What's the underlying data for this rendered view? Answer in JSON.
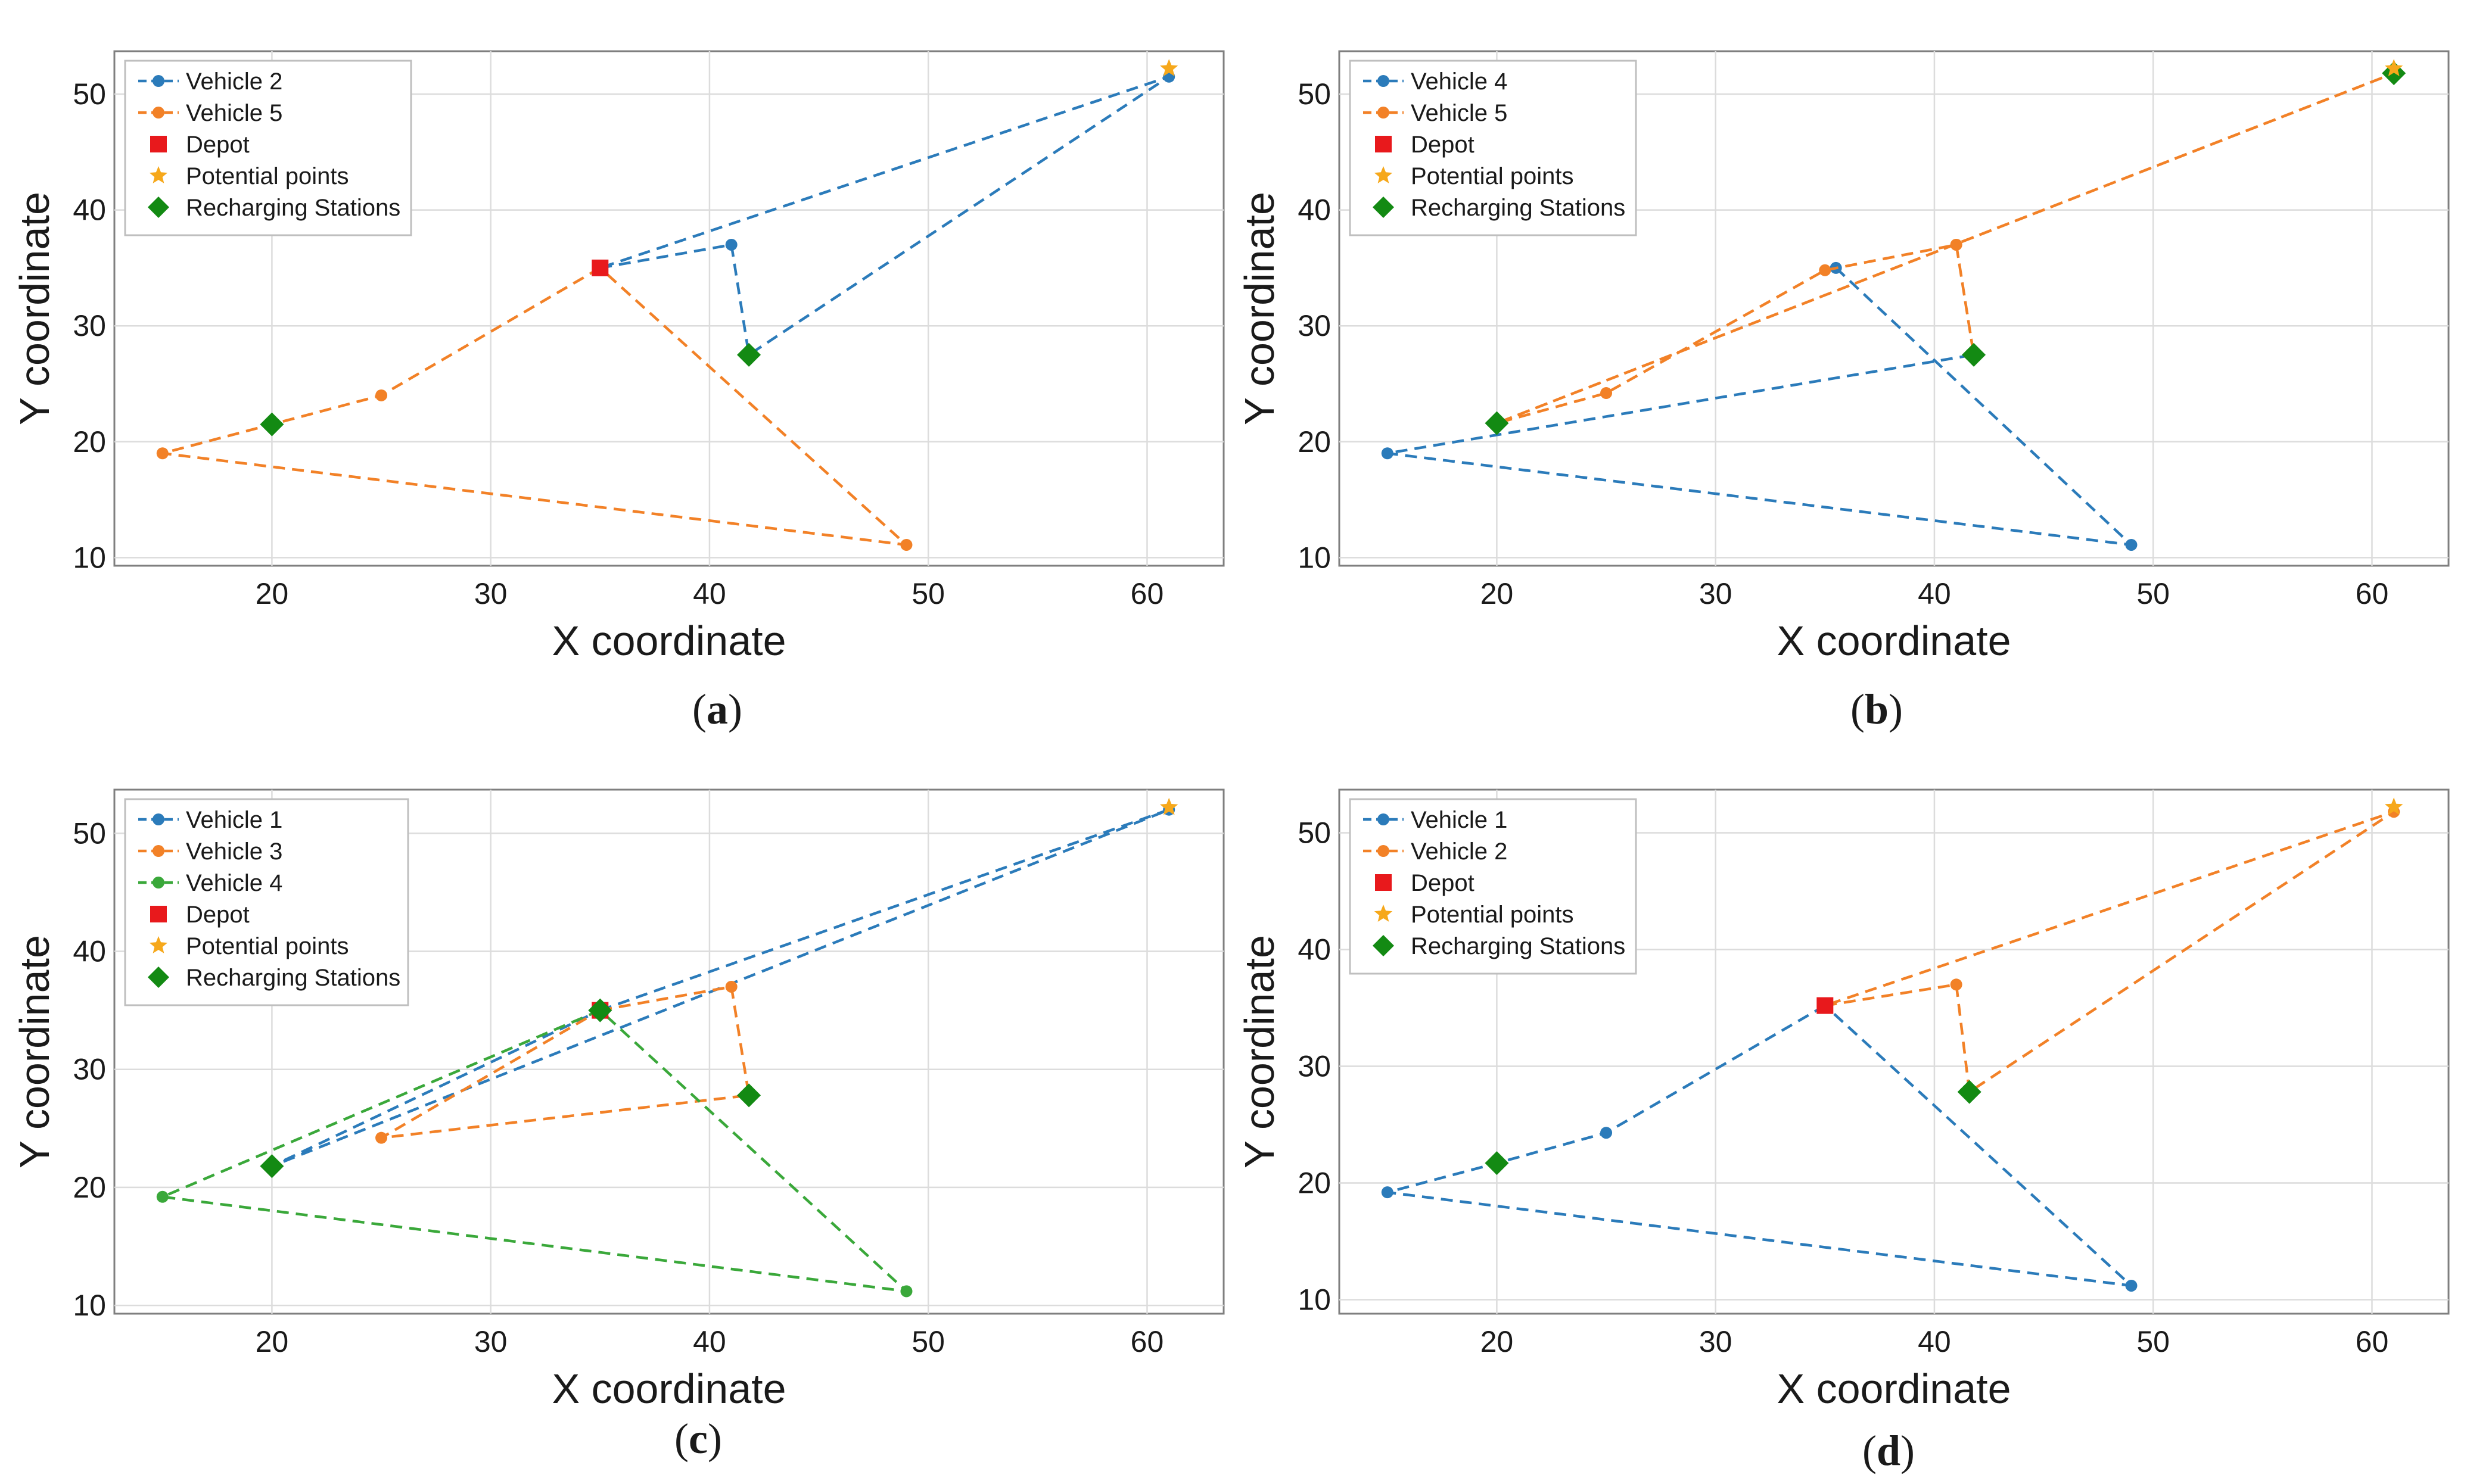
{
  "colors": {
    "depot": "#e8191c",
    "potential": "#f6a81b",
    "recharge": "#138a13",
    "Vehicle 1": "#2b7bba",
    "Vehicle 2": "#2b7bba",
    "Vehicle 3": "#f28127",
    "Vehicle 4": "#3aa83a",
    "Vehicle 5": "#f28127"
  },
  "chart_data": [
    {
      "type": "line",
      "caption_letter": "a",
      "xlabel": "X coordinate",
      "ylabel": "Y coordinate",
      "xlim": [
        12.8,
        63.5
      ],
      "ylim": [
        9.3,
        53.7
      ],
      "xticks": [
        20,
        30,
        40,
        50,
        60
      ],
      "yticks": [
        10,
        20,
        30,
        40,
        50
      ],
      "grid": true,
      "legend_position": "top-left",
      "depot": [
        35,
        35
      ],
      "potential_points": [
        [
          61,
          52
        ]
      ],
      "recharging_stations": [
        [
          20,
          21.5
        ],
        [
          41.8,
          27.5
        ]
      ],
      "series": [
        {
          "name": "Vehicle 2",
          "color_key": "Vehicle 2",
          "points": [
            [
              35,
              35
            ],
            [
              41,
              37
            ],
            [
              41.8,
              27.5
            ],
            [
              61,
              51.5
            ],
            [
              35,
              35
            ]
          ]
        },
        {
          "name": "Vehicle 5",
          "color_key": "Vehicle 5",
          "points": [
            [
              35,
              35
            ],
            [
              25,
              24
            ],
            [
              20,
              21.5
            ],
            [
              15,
              19
            ],
            [
              49,
              11.1
            ],
            [
              35,
              35
            ]
          ]
        }
      ],
      "legend": [
        "Vehicle 2",
        "Vehicle 5",
        "Depot",
        "Potential points",
        "Recharging Stations"
      ]
    },
    {
      "type": "line",
      "caption_letter": "b",
      "xlabel": "X coordinate",
      "ylabel": "Y coordinate",
      "xlim": [
        12.8,
        63.5
      ],
      "ylim": [
        9.3,
        53.7
      ],
      "xticks": [
        20,
        30,
        40,
        50,
        60
      ],
      "yticks": [
        10,
        20,
        30,
        40,
        50
      ],
      "grid": true,
      "legend_position": "top-left",
      "depot": null,
      "potential_points": [
        [
          61,
          52
        ]
      ],
      "recharging_stations": [
        [
          20,
          21.6
        ],
        [
          41.8,
          27.5
        ],
        [
          61,
          51.8
        ]
      ],
      "series": [
        {
          "name": "Vehicle 4",
          "color_key": "Vehicle 1",
          "points": [
            [
              35.5,
              35
            ],
            [
              49,
              11.1
            ],
            [
              15,
              19
            ],
            [
              41.8,
              27.5
            ]
          ]
        },
        {
          "name": "Vehicle 5",
          "color_key": "Vehicle 5",
          "points": [
            [
              41,
              37
            ],
            [
              41.8,
              27.5
            ],
            [
              41,
              37
            ],
            [
              35,
              34.8
            ],
            [
              25,
              24.2
            ],
            [
              20,
              21.6
            ],
            [
              61,
              51.8
            ],
            [
              20,
              21.6
            ]
          ]
        }
      ],
      "legend": [
        "Vehicle 4",
        "Vehicle 5",
        "Depot",
        "Potential points",
        "Recharging Stations"
      ]
    },
    {
      "type": "line",
      "caption_letter": "c",
      "xlabel": "X coordinate",
      "ylabel": "Y coordinate",
      "xlim": [
        12.8,
        63.5
      ],
      "ylim": [
        9.3,
        53.7
      ],
      "xticks": [
        20,
        30,
        40,
        50,
        60
      ],
      "yticks": [
        10,
        20,
        30,
        40,
        50
      ],
      "grid": true,
      "legend_position": "top-left",
      "depot": [
        35,
        35
      ],
      "potential_points": [
        [
          61,
          52
        ]
      ],
      "recharging_stations": [
        [
          20,
          21.8
        ],
        [
          35,
          35
        ],
        [
          41.8,
          27.8
        ]
      ],
      "series": [
        {
          "name": "Vehicle 1",
          "color_key": "Vehicle 1",
          "points": [
            [
              35,
              35
            ],
            [
              61,
              52
            ],
            [
              20,
              21.8
            ],
            [
              35,
              35
            ]
          ]
        },
        {
          "name": "Vehicle 3",
          "color_key": "Vehicle 3",
          "points": [
            [
              35,
              35
            ],
            [
              41,
              37
            ],
            [
              41.8,
              27.8
            ],
            [
              25,
              24.2
            ],
            [
              35,
              35
            ]
          ]
        },
        {
          "name": "Vehicle 4",
          "color_key": "Vehicle 4",
          "points": [
            [
              35,
              35
            ],
            [
              15,
              19.2
            ],
            [
              49,
              11.2
            ],
            [
              35,
              35
            ]
          ]
        }
      ],
      "legend": [
        "Vehicle 1",
        "Vehicle 3",
        "Vehicle 4",
        "Depot",
        "Potential points",
        "Recharging Stations"
      ]
    },
    {
      "type": "line",
      "caption_letter": "d",
      "xlabel": "X coordinate",
      "ylabel": "Y coordinate",
      "xlim": [
        12.8,
        63.5
      ],
      "ylim": [
        8.8,
        53.7
      ],
      "xticks": [
        20,
        30,
        40,
        50,
        60
      ],
      "yticks": [
        10,
        20,
        30,
        40,
        50
      ],
      "grid": true,
      "legend_position": "top-left",
      "depot": [
        35,
        35.2
      ],
      "potential_points": [
        [
          61,
          52
        ]
      ],
      "recharging_stations": [
        [
          20,
          21.7
        ],
        [
          41.6,
          27.8
        ]
      ],
      "series": [
        {
          "name": "Vehicle 1",
          "color_key": "Vehicle 1",
          "points": [
            [
              35,
              35.2
            ],
            [
              25,
              24.3
            ],
            [
              20,
              21.7
            ],
            [
              15,
              19.2
            ],
            [
              49,
              11.2
            ],
            [
              35,
              35.2
            ]
          ]
        },
        {
          "name": "Vehicle 2",
          "color_key": "Vehicle 3",
          "points": [
            [
              35,
              35.2
            ],
            [
              41,
              37
            ],
            [
              41.6,
              27.8
            ],
            [
              61,
              51.8
            ],
            [
              35,
              35.2
            ]
          ]
        }
      ],
      "legend": [
        "Vehicle 1",
        "Vehicle 2",
        "Depot",
        "Potential points",
        "Recharging Stations"
      ]
    }
  ]
}
